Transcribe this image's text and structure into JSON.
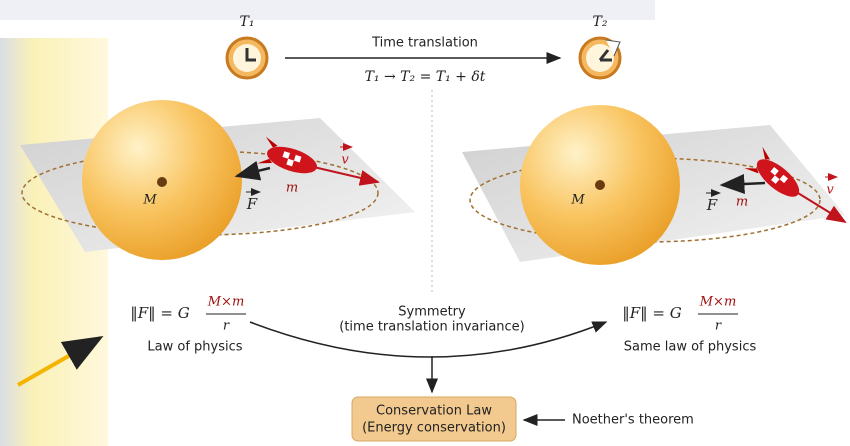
{
  "time_translation": {
    "clock_left_label": "T₁",
    "clock_right_label": "T₂",
    "title": "Time translation",
    "formula": "T₁ → T₂ = T₁ + δt"
  },
  "left_scene": {
    "mass_label": "M",
    "small_mass_label": "m",
    "force_label": "F",
    "velocity_label": "v"
  },
  "right_scene": {
    "mass_label": "M",
    "small_mass_label": "m",
    "force_label": "F",
    "velocity_label": "v"
  },
  "left_law": {
    "lhs": "‖F‖ = G",
    "numerator": "M×m",
    "denominator": "r",
    "caption": "Law of physics"
  },
  "right_law": {
    "lhs": "‖F‖ = G",
    "numerator": "M×m",
    "denominator": "r",
    "caption": "Same law of physics"
  },
  "symmetry": {
    "title": "Symmetry",
    "subtitle": "(time translation invariance)"
  },
  "conservation": {
    "title": "Conservation Law",
    "subtitle": "(Energy conservation)"
  },
  "theorem": "Noether's theorem"
}
